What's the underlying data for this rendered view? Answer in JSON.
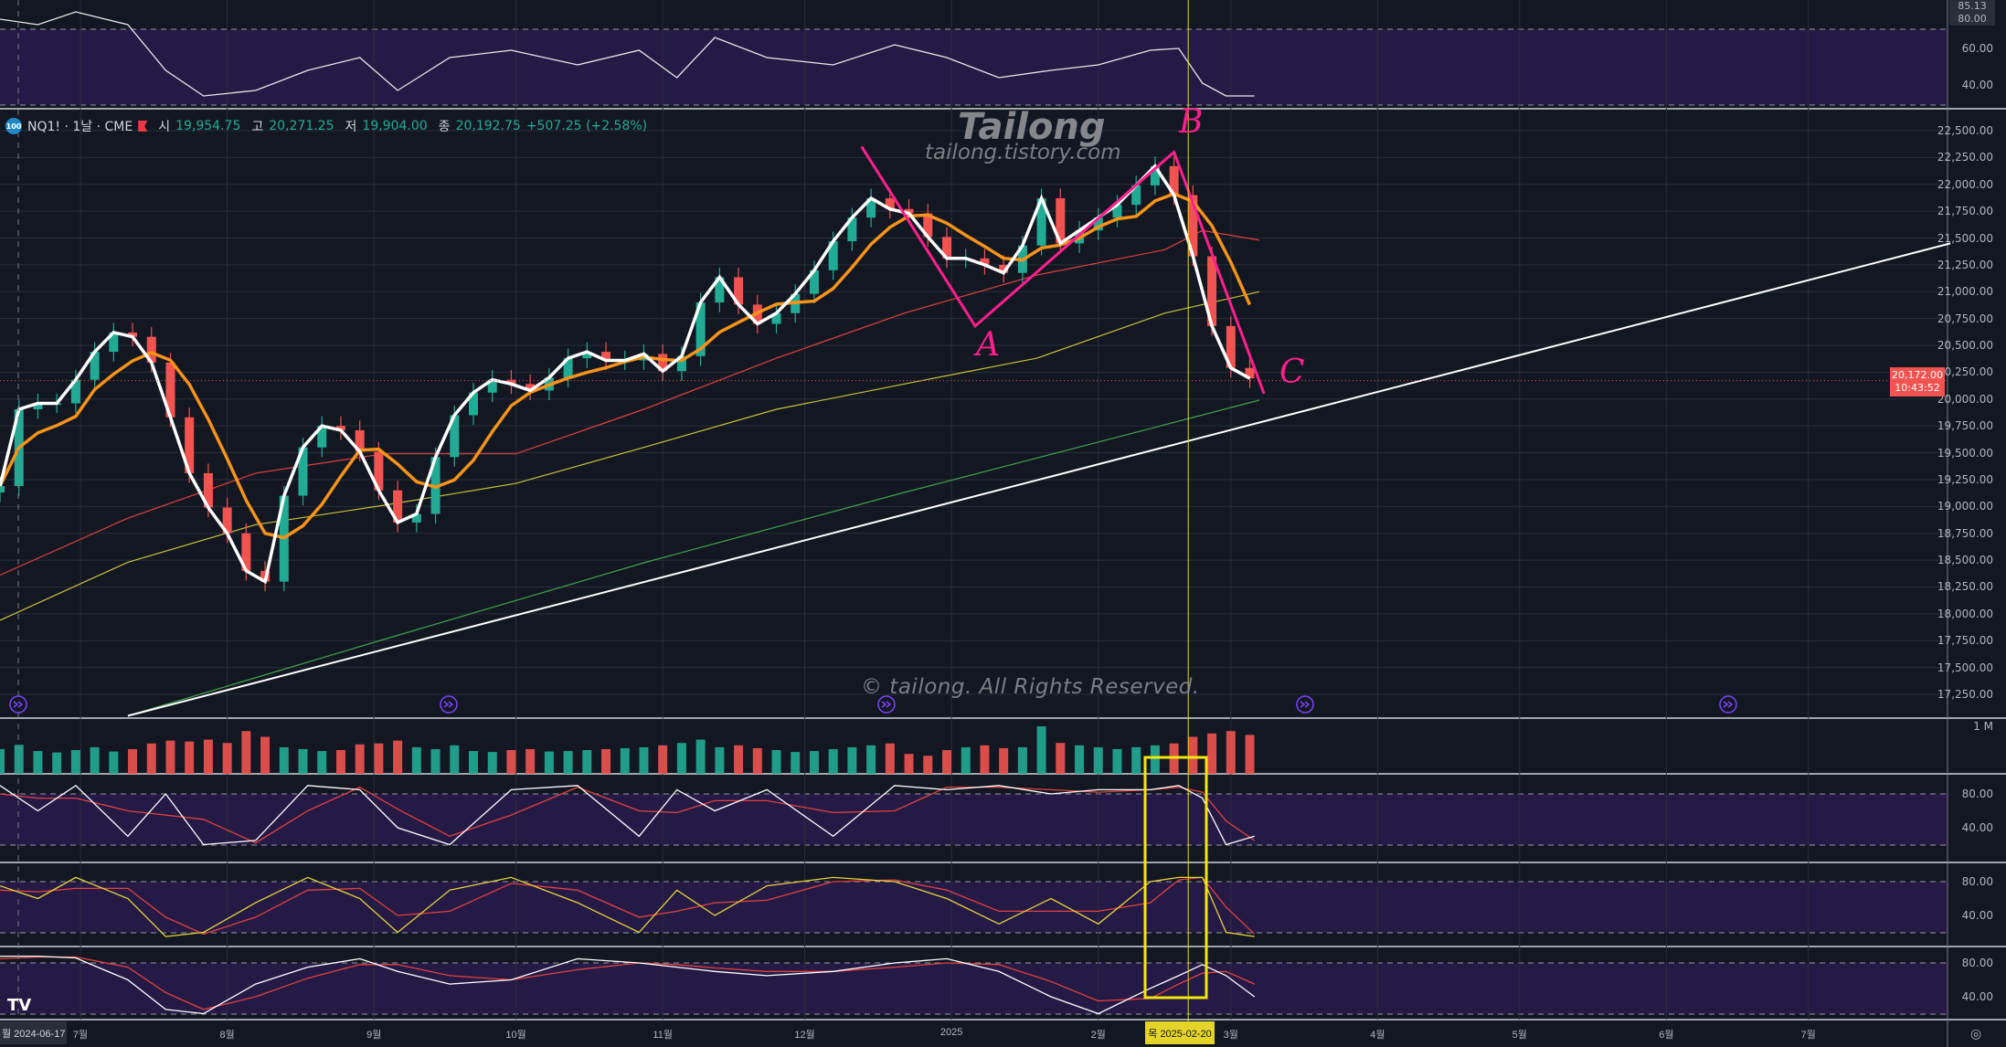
{
  "legend": {
    "badge": "100",
    "symbol": "NQ1! · 1날 · CME",
    "open_label": "시",
    "open": "19,954.75",
    "high_label": "고",
    "high": "20,271.25",
    "low_label": "저",
    "low": "19,904.00",
    "close_label": "종",
    "close": "20,192.75",
    "change": "+507.25 (+2.58%)"
  },
  "watermark": {
    "title": "Tailong",
    "url": "tailong.tistory.com",
    "copyright": "© tailong. All Rights Reserved."
  },
  "annotations": {
    "a": "A",
    "b": "B",
    "c": "C"
  },
  "price_axis": {
    "ticks": [
      "22,500.00",
      "22,250.00",
      "22,000.00",
      "21,750.00",
      "21,500.00",
      "21,250.00",
      "21,000.00",
      "20,750.00",
      "20,500.00",
      "20,250.00",
      "20,000.00",
      "19,750.00",
      "19,500.00",
      "19,250.00",
      "19,000.00",
      "18,750.00",
      "18,500.00",
      "18,250.00",
      "18,000.00",
      "17,750.00",
      "17,500.00",
      "17,250.00"
    ],
    "current_price": "20,172.00",
    "countdown": "10:43:52"
  },
  "top_pane": {
    "tag": "85.13",
    "ticks": [
      "80.00",
      "60.00",
      "40.00"
    ]
  },
  "volume_pane": {
    "tick": "1 M"
  },
  "osc_ticks": [
    "80.00",
    "40.00"
  ],
  "time_axis": {
    "left_label": "월 2024-06-17",
    "crosshair_label": "목 2025-02-20",
    "labels": [
      {
        "date": "2024-07-01",
        "label": "7월"
      },
      {
        "date": "2024-08-01",
        "label": "8월"
      },
      {
        "date": "2024-09-01",
        "label": "9월"
      },
      {
        "date": "2024-10-01",
        "label": "10월"
      },
      {
        "date": "2024-11-01",
        "label": "11월"
      },
      {
        "date": "2024-12-01",
        "label": "12월"
      },
      {
        "date": "2025-01-01",
        "label": "2025"
      },
      {
        "date": "2025-02-01",
        "label": "2월"
      },
      {
        "date": "2025-03-01",
        "label": "3월"
      },
      {
        "date": "2025-04-01",
        "label": "4월"
      },
      {
        "date": "2025-05-01",
        "label": "5월"
      },
      {
        "date": "2025-06-01",
        "label": "6월"
      },
      {
        "date": "2025-07-01",
        "label": "7월"
      }
    ]
  },
  "colors": {
    "up": "#22ab94",
    "down": "#f05350",
    "background": "#131722",
    "band": "#251a45",
    "ma_fast": "#ffffff",
    "ma_mid": "#f7931a",
    "ma_100": "#e0413f",
    "ma_200": "#c8c23a",
    "ma_long": "#3fa34d",
    "annotation": "#ff1f8e",
    "crosshair": "#e4d42a"
  },
  "chart_data": {
    "type": "candlestick",
    "ylim": [
      17150,
      22650
    ],
    "xlim": [
      "2024-06-14",
      "2025-08-05"
    ],
    "grid": true,
    "candles": {
      "dates": [
        "2024-06-14",
        "2024-06-18",
        "2024-06-22",
        "2024-06-26",
        "2024-06-30",
        "2024-07-04",
        "2024-07-08",
        "2024-07-12",
        "2024-07-16",
        "2024-07-20",
        "2024-07-24",
        "2024-07-28",
        "2024-08-01",
        "2024-08-05",
        "2024-08-09",
        "2024-08-13",
        "2024-08-17",
        "2024-08-21",
        "2024-08-25",
        "2024-08-29",
        "2024-09-02",
        "2024-09-06",
        "2024-09-10",
        "2024-09-14",
        "2024-09-18",
        "2024-09-22",
        "2024-09-26",
        "2024-09-30",
        "2024-10-04",
        "2024-10-08",
        "2024-10-12",
        "2024-10-16",
        "2024-10-20",
        "2024-10-24",
        "2024-10-28",
        "2024-11-01",
        "2024-11-05",
        "2024-11-09",
        "2024-11-13",
        "2024-11-17",
        "2024-11-21",
        "2024-11-25",
        "2024-11-29",
        "2024-12-03",
        "2024-12-07",
        "2024-12-11",
        "2024-12-15",
        "2024-12-19",
        "2024-12-23",
        "2024-12-27",
        "2024-12-31",
        "2025-01-04",
        "2025-01-08",
        "2025-01-12",
        "2025-01-16",
        "2025-01-20",
        "2025-01-24",
        "2025-01-28",
        "2025-02-01",
        "2025-02-05",
        "2025-02-09",
        "2025-02-13",
        "2025-02-17",
        "2025-02-21",
        "2025-02-25",
        "2025-03-01",
        "2025-03-05"
      ],
      "close": [
        19190,
        19905,
        19960,
        19960,
        20180,
        20440,
        20620,
        20580,
        20340,
        19830,
        19310,
        18990,
        18750,
        18400,
        18300,
        19100,
        19550,
        19750,
        19710,
        19510,
        19150,
        18850,
        18930,
        19460,
        19850,
        20060,
        20180,
        20140,
        20080,
        20200,
        20380,
        20440,
        20360,
        20360,
        20420,
        20260,
        20400,
        20900,
        21135,
        20880,
        20700,
        20800,
        20980,
        21200,
        21470,
        21690,
        21870,
        21770,
        21730,
        21510,
        21310,
        21310,
        21250,
        21175,
        21430,
        21870,
        21450,
        21570,
        21690,
        21810,
        21990,
        22170,
        21900,
        21330,
        20680,
        20290,
        20192.75
      ],
      "volume_k": [
        520,
        610,
        480,
        450,
        500,
        560,
        470,
        520,
        640,
        700,
        680,
        720,
        650,
        900,
        780,
        560,
        520,
        480,
        500,
        620,
        640,
        700,
        560,
        520,
        600,
        480,
        460,
        500,
        520,
        470,
        480,
        500,
        520,
        540,
        560,
        600,
        650,
        720,
        560,
        600,
        540,
        500,
        460,
        480,
        520,
        560,
        600,
        640,
        420,
        380,
        500,
        560,
        600,
        540,
        560,
        1000,
        650,
        600,
        560,
        520,
        560,
        600,
        640,
        780,
        850,
        900,
        820
      ]
    },
    "moving_averages": {
      "ma_100": [
        [
          "2024-06-14",
          18360
        ],
        [
          "2024-07-11",
          18890
        ],
        [
          "2024-08-07",
          19310
        ],
        [
          "2024-09-03",
          19490
        ],
        [
          "2024-10-01",
          19490
        ],
        [
          "2024-10-28",
          19905
        ],
        [
          "2024-11-25",
          20380
        ],
        [
          "2024-12-22",
          20800
        ],
        [
          "2025-01-19",
          21155
        ],
        [
          "2025-02-15",
          21390
        ],
        [
          "2025-02-23",
          21570
        ],
        [
          "2025-03-07",
          21480
        ]
      ],
      "ma_200": [
        [
          "2024-06-14",
          17940
        ],
        [
          "2024-07-11",
          18480
        ],
        [
          "2024-08-07",
          18830
        ],
        [
          "2024-09-03",
          19010
        ],
        [
          "2024-10-01",
          19215
        ],
        [
          "2024-10-28",
          19550
        ],
        [
          "2024-11-25",
          19905
        ],
        [
          "2024-12-22",
          20140
        ],
        [
          "2025-01-19",
          20380
        ],
        [
          "2025-02-15",
          20800
        ],
        [
          "2025-03-07",
          21000
        ]
      ],
      "ma_long": [
        [
          "2024-07-11",
          17050
        ],
        [
          "2024-09-03",
          17760
        ],
        [
          "2024-10-28",
          18475
        ],
        [
          "2024-12-22",
          19130
        ],
        [
          "2025-02-02",
          19610
        ],
        [
          "2025-03-07",
          19990
        ]
      ]
    },
    "trendline": [
      [
        "2024-07-11",
        17050
      ],
      [
        "2025-07-31",
        21450
      ]
    ],
    "drawing_abc": [
      [
        "2024-12-13",
        22350
      ],
      [
        "2025-01-06",
        20680
      ],
      [
        "2025-02-17",
        22300
      ],
      [
        "2025-03-08",
        20050
      ]
    ],
    "oscillators": {
      "dates": [
        "2024-06-14",
        "2024-06-22",
        "2024-06-30",
        "2024-07-11",
        "2024-07-19",
        "2024-07-27",
        "2024-08-07",
        "2024-08-18",
        "2024-08-29",
        "2024-09-06",
        "2024-09-17",
        "2024-09-30",
        "2024-10-14",
        "2024-10-27",
        "2024-11-04",
        "2024-11-12",
        "2024-11-23",
        "2024-12-07",
        "2024-12-20",
        "2024-12-31",
        "2025-01-11",
        "2025-01-22",
        "2025-02-01",
        "2025-02-12",
        "2025-02-18",
        "2025-02-23",
        "2025-02-28",
        "2025-03-06"
      ],
      "top_rsi": [
        76,
        73,
        80,
        73,
        48,
        34,
        37,
        48,
        55,
        37,
        55,
        59,
        51,
        59,
        44,
        66,
        55,
        51,
        62,
        55,
        44,
        48,
        51,
        59,
        60,
        41,
        34,
        34
      ],
      "pane1_k": [
        90,
        60,
        90,
        30,
        80,
        20,
        25,
        90,
        85,
        40,
        20,
        85,
        90,
        30,
        85,
        60,
        85,
        30,
        90,
        85,
        90,
        80,
        85,
        85,
        90,
        75,
        20,
        30
      ],
      "pane1_d": [
        80,
        75,
        75,
        60,
        55,
        50,
        22,
        60,
        88,
        62,
        30,
        55,
        88,
        60,
        58,
        72,
        72,
        58,
        60,
        88,
        88,
        85,
        82,
        85,
        88,
        82,
        48,
        25
      ],
      "pane2_k": [
        75,
        60,
        85,
        60,
        15,
        20,
        55,
        85,
        60,
        20,
        70,
        85,
        55,
        20,
        70,
        40,
        75,
        85,
        80,
        60,
        30,
        60,
        30,
        80,
        85,
        85,
        20,
        15
      ],
      "pane2_d": [
        70,
        68,
        72,
        72,
        38,
        18,
        38,
        70,
        72,
        40,
        45,
        78,
        70,
        38,
        45,
        55,
        58,
        80,
        82,
        70,
        45,
        45,
        45,
        55,
        82,
        85,
        50,
        18
      ],
      "pane3_k": [
        88,
        88,
        86,
        60,
        25,
        20,
        55,
        75,
        85,
        70,
        55,
        60,
        85,
        80,
        75,
        70,
        65,
        70,
        80,
        85,
        70,
        40,
        20,
        50,
        65,
        78,
        65,
        40
      ],
      "pane3_d": [
        85,
        87,
        87,
        75,
        45,
        25,
        40,
        62,
        78,
        78,
        65,
        60,
        72,
        80,
        78,
        74,
        70,
        70,
        75,
        80,
        78,
        58,
        35,
        38,
        55,
        68,
        70,
        55
      ]
    }
  }
}
